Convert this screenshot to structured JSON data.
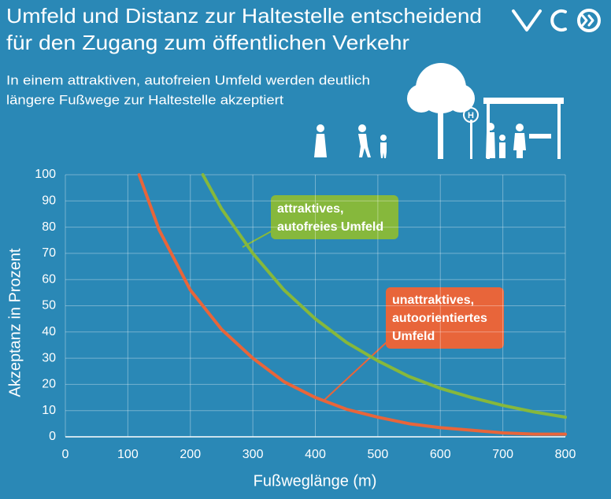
{
  "chart_data": {
    "type": "line",
    "title": [
      "Umfeld und Distanz zur Haltestelle entscheidend",
      "für den Zugang zum öffentlichen Verkehr"
    ],
    "subtitle": [
      "In einem attraktiven, autofreien Umfeld werden deutlich",
      "längere Fußwege zur Haltestelle akzeptiert"
    ],
    "x_label": "Fußweglänge (m)",
    "y_label": "Akzeptanz in Prozent",
    "xlim": [
      0,
      800
    ],
    "xticks": [
      0,
      100,
      200,
      300,
      400,
      500,
      600,
      700,
      800
    ],
    "ylim": [
      0,
      100
    ],
    "yticks": [
      0,
      10,
      20,
      30,
      40,
      50,
      60,
      70,
      80,
      90,
      100
    ],
    "grid": true,
    "series": [
      {
        "name": [
          "attraktives,",
          "autofreies Umfeld"
        ],
        "color": "#86b83c",
        "x": [
          220,
          250,
          300,
          350,
          400,
          450,
          500,
          550,
          600,
          650,
          700,
          750,
          800
        ],
        "values": [
          100,
          87,
          70,
          56,
          45,
          36,
          29,
          23,
          18.5,
          15,
          12,
          9.5,
          7.5
        ]
      },
      {
        "name": [
          "unattraktives,",
          "autoorientiertes",
          "Umfeld"
        ],
        "color": "#e8653a",
        "x": [
          118,
          150,
          200,
          250,
          300,
          350,
          400,
          450,
          500,
          550,
          600,
          650,
          700,
          750,
          800
        ],
        "values": [
          100,
          79,
          56,
          41,
          30,
          21,
          15,
          10.5,
          7.5,
          5,
          3.5,
          2.5,
          1.5,
          1,
          1
        ]
      }
    ]
  },
  "illustration": {
    "sign": "H"
  }
}
